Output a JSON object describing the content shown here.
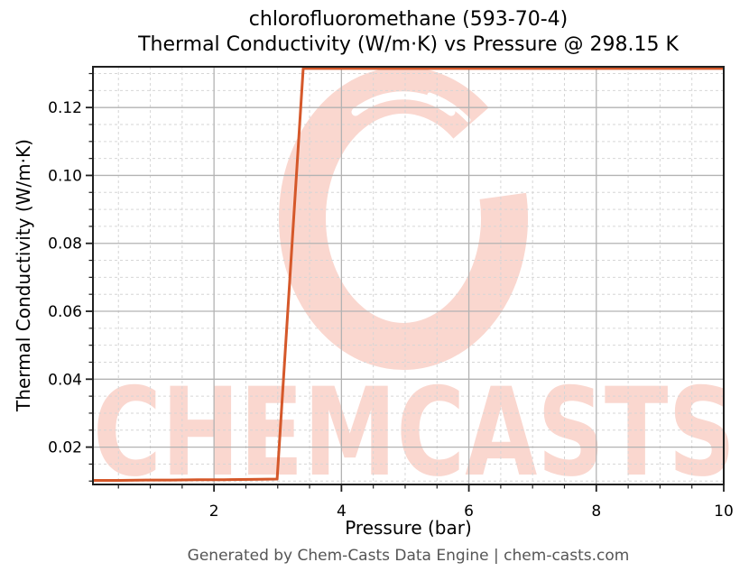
{
  "figure": {
    "title_line1": "chlorofluoromethane (593-70-4)",
    "title_line2": "Thermal Conductivity (W/m·K) vs Pressure @ 298.15 K",
    "footer": "Generated by Chem-Casts Data Engine | chem-casts.com",
    "watermark_text": "CHEMCASTS",
    "colors": {
      "line": "#d5582a",
      "watermark": "#fad7cf",
      "grid_major": "#b3b3b3",
      "grid_minor": "#d6d6d6",
      "spine": "#1f1f1f",
      "tick_text": "#000000",
      "footer_text": "#555555"
    }
  },
  "chart_data": {
    "type": "line",
    "compound": "chlorofluoromethane",
    "cas_number": "593-70-4",
    "temperature_K": "298.15",
    "title": "chlorofluoromethane (593-70-4) Thermal Conductivity (W/m·K) vs Pressure @ 298.15 K",
    "xlabel": "Pressure (bar)",
    "ylabel": "Thermal Conductivity (W/m·K)",
    "xlim": [
      0.1,
      10.0
    ],
    "ylim": [
      0.009,
      0.132
    ],
    "x_ticks": [
      2,
      4,
      6,
      8,
      10
    ],
    "x_tick_labels": [
      "2",
      "4",
      "6",
      "8",
      "10"
    ],
    "y_ticks": [
      0.02,
      0.04,
      0.06,
      0.08,
      0.1,
      0.12
    ],
    "y_tick_labels": [
      "0.02",
      "0.04",
      "0.06",
      "0.08",
      "0.10",
      "0.12"
    ],
    "x_minor_step": 0.5,
    "y_minor_step": 0.005,
    "grid": {
      "major": true,
      "minor": true
    },
    "legend": "none",
    "series": [
      {
        "name": "Thermal Conductivity",
        "x": [
          0.1,
          0.51,
          0.93,
          1.34,
          1.75,
          2.16,
          2.58,
          2.99,
          3.4,
          3.81,
          4.23,
          4.64,
          5.05,
          5.46,
          5.88,
          6.29,
          6.7,
          7.11,
          7.53,
          7.94,
          8.35,
          8.76,
          9.18,
          9.59,
          10.0
        ],
        "y": [
          0.0102,
          0.0102,
          0.0103,
          0.0103,
          0.0104,
          0.0104,
          0.0105,
          0.0106,
          0.1315,
          0.1315,
          0.1315,
          0.1315,
          0.1315,
          0.1315,
          0.1315,
          0.1315,
          0.1315,
          0.1315,
          0.1315,
          0.1315,
          0.1315,
          0.1315,
          0.1315,
          0.1315,
          0.1315
        ]
      }
    ],
    "annotations": {
      "gas_phase_value_W_mK": 0.0105,
      "liquid_phase_value_W_mK": 0.1315,
      "step_between_pressure_bar": [
        3.0,
        3.4
      ]
    }
  }
}
